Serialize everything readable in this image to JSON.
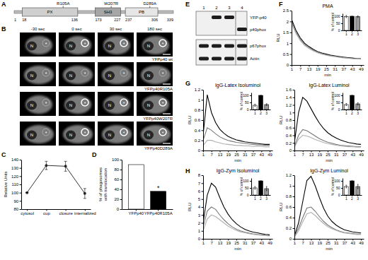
{
  "panel_labels": [
    "A",
    "B",
    "C",
    "D",
    "E",
    "F",
    "G",
    "H"
  ],
  "diagram": {
    "start": 1,
    "end": 339,
    "domains": [
      {
        "label": "PX",
        "start": 18,
        "end": 136
      },
      {
        "label": "SH3",
        "start": 173,
        "end": 227
      },
      {
        "label": "PB",
        "start": 237,
        "end": 306
      }
    ],
    "mutations": [
      {
        "label": "R105A",
        "position": 105
      },
      {
        "label": "W207R",
        "position": 207
      },
      {
        "label": "D289A",
        "position": 289
      }
    ]
  },
  "images": {
    "columns": [
      "-30 sec",
      "0 sec",
      "30 sec",
      "180 sec"
    ],
    "rows": [
      "YFPp40 wt",
      "YFPp40R105A",
      "YFPp40W207R",
      "YFPp40D289A"
    ],
    "markers": {
      "nucleus": "N",
      "phagosome": "*"
    }
  },
  "blot": {
    "lanes": [
      "1",
      "2",
      "3",
      "4"
    ],
    "blots": [
      {
        "bands": [
          {
            "label": "YFP-p40",
            "lanes": [
              false,
              true,
              true,
              false
            ]
          },
          {
            "label": "p40phox",
            "lanes": [
              false,
              false,
              false,
              true
            ]
          }
        ]
      },
      {
        "bands": [
          {
            "label": "p67phox",
            "lanes": [
              true,
              true,
              true,
              true
            ]
          },
          {
            "label": "Actin",
            "lanes": [
              true,
              true,
              true,
              true
            ]
          }
        ]
      }
    ]
  },
  "chart_data": [
    {
      "type": "line",
      "ylabel": "Relative Units",
      "categories": [
        "cytosol",
        "cup",
        "closure",
        "internalized"
      ],
      "values": [
        100,
        133,
        132,
        99
      ],
      "errors": [
        0,
        5,
        6,
        6
      ],
      "color": "#333333",
      "marker": "circle",
      "ylim": [
        80,
        140
      ],
      "yticks": [
        80,
        90,
        100,
        110,
        120,
        130,
        140
      ]
    },
    {
      "type": "bar",
      "ylabel": "% of phagosomes with translocation",
      "categories": [
        "YFPp40",
        "YFPp40R105A"
      ],
      "values": [
        90,
        36
      ],
      "colors": [
        "#ffffff",
        "#000000"
      ],
      "annotations": [
        null,
        "*"
      ],
      "ylim": [
        0,
        100
      ],
      "yticks": [
        0,
        20,
        40,
        60,
        80,
        100
      ]
    },
    {
      "type": "line",
      "title": "PMA",
      "xlabel": "min",
      "ylabel": "RLU",
      "x": [
        1,
        4,
        7,
        10,
        13,
        16,
        19,
        22,
        25,
        28,
        31,
        34,
        37,
        40,
        43,
        46,
        49
      ],
      "series": [
        {
          "color": "#000000",
          "values": [
            2.1,
            1.6,
            1.25,
            1.0,
            0.85,
            0.72,
            0.62,
            0.55,
            0.5,
            0.45,
            0.42,
            0.39,
            0.36,
            0.34,
            0.32,
            0.3,
            0.29
          ]
        },
        {
          "color": "#777777",
          "values": [
            2.0,
            1.52,
            1.18,
            0.95,
            0.8,
            0.68,
            0.59,
            0.52,
            0.47,
            0.43,
            0.4,
            0.37,
            0.34,
            0.32,
            0.3,
            0.29,
            0.28
          ]
        },
        {
          "color": "#b0b0b0",
          "values": [
            1.9,
            1.45,
            1.12,
            0.9,
            0.76,
            0.65,
            0.56,
            0.5,
            0.45,
            0.41,
            0.38,
            0.35,
            0.33,
            0.31,
            0.29,
            0.28,
            0.27
          ]
        }
      ],
      "xlim": [
        1,
        51
      ],
      "xticks": [
        1,
        7,
        13,
        19,
        25,
        31,
        37,
        43,
        49
      ],
      "ylim": [
        0,
        2.5
      ],
      "yticks": [
        0,
        0.5,
        1,
        1.5,
        2,
        2.5
      ]
    },
    {
      "type": "bar",
      "ylabel": "% of control",
      "categories": [
        "1",
        "2",
        "3"
      ],
      "values": [
        98,
        100,
        97
      ],
      "errors": [
        8,
        0,
        6
      ],
      "colors": [
        "#ffffff",
        "#000000",
        "#999999"
      ],
      "ylim": [
        0,
        120
      ],
      "yticks": [
        0,
        50,
        100
      ]
    },
    {
      "type": "line",
      "title": "IgG-Latex Isoluminol",
      "xlabel": "min",
      "ylabel": "RLU",
      "x": [
        1,
        4,
        7,
        10,
        13,
        16,
        19,
        22,
        25,
        28,
        31,
        34,
        37,
        40,
        43,
        46,
        49
      ],
      "series": [
        {
          "color": "#000000",
          "values": [
            0.3,
            1.1,
            0.75,
            0.55,
            0.42,
            0.34,
            0.28,
            0.24,
            0.21,
            0.19,
            0.17,
            0.16,
            0.15,
            0.14,
            0.13,
            0.12,
            0.12
          ]
        },
        {
          "color": "#777777",
          "values": [
            0.2,
            0.45,
            0.4,
            0.33,
            0.27,
            0.23,
            0.2,
            0.18,
            0.16,
            0.15,
            0.14,
            0.13,
            0.12,
            0.11,
            0.11,
            0.1,
            0.1
          ]
        },
        {
          "color": "#b0b0b0",
          "values": [
            0.1,
            0.2,
            0.2,
            0.17,
            0.15,
            0.13,
            0.12,
            0.11,
            0.1,
            0.1,
            0.09,
            0.09,
            0.08,
            0.08,
            0.08,
            0.07,
            0.07
          ]
        }
      ],
      "xlim": [
        1,
        51
      ],
      "xticks": [
        1,
        7,
        13,
        19,
        25,
        31,
        37,
        43,
        49
      ],
      "ylim": [
        0,
        1.2
      ],
      "yticks": [
        0,
        0.2,
        0.4,
        0.6,
        0.8,
        1,
        1.2
      ]
    },
    {
      "type": "bar",
      "ylabel": "% of control",
      "categories": [
        "1",
        "2",
        "3"
      ],
      "values": [
        30,
        100,
        35
      ],
      "errors": [
        8,
        0,
        6
      ],
      "colors": [
        "#ffffff",
        "#000000",
        "#999999"
      ],
      "ylim": [
        0,
        120
      ],
      "yticks": [
        0,
        50,
        100
      ]
    },
    {
      "type": "line",
      "title": "IgG-Latex Luminol",
      "xlabel": "min",
      "ylabel": "RLU",
      "x": [
        1,
        4,
        7,
        10,
        13,
        16,
        19,
        22,
        25,
        28,
        31,
        34,
        37,
        40,
        43,
        46,
        49
      ],
      "series": [
        {
          "color": "#000000",
          "values": [
            0.2,
            1.0,
            1.4,
            1.3,
            1.1,
            0.9,
            0.72,
            0.58,
            0.47,
            0.39,
            0.33,
            0.28,
            0.24,
            0.21,
            0.19,
            0.17,
            0.16
          ]
        },
        {
          "color": "#777777",
          "values": [
            0.1,
            0.4,
            0.55,
            0.52,
            0.45,
            0.38,
            0.31,
            0.26,
            0.22,
            0.19,
            0.16,
            0.14,
            0.13,
            0.12,
            0.11,
            0.1,
            0.1
          ]
        },
        {
          "color": "#b0b0b0",
          "values": [
            0.08,
            0.3,
            0.4,
            0.38,
            0.34,
            0.29,
            0.25,
            0.21,
            0.18,
            0.16,
            0.14,
            0.12,
            0.11,
            0.1,
            0.1,
            0.09,
            0.09
          ]
        }
      ],
      "xlim": [
        1,
        51
      ],
      "xticks": [
        1,
        7,
        13,
        19,
        25,
        31,
        37,
        43,
        49
      ],
      "ylim": [
        0,
        1.6
      ],
      "yticks": [
        0,
        0.2,
        0.4,
        0.6,
        0.8,
        1,
        1.2,
        1.4,
        1.6
      ]
    },
    {
      "type": "bar",
      "ylabel": "% of control",
      "categories": [
        "1",
        "2",
        "3"
      ],
      "values": [
        35,
        100,
        40
      ],
      "errors": [
        8,
        0,
        8
      ],
      "colors": [
        "#ffffff",
        "#000000",
        "#999999"
      ],
      "ylim": [
        0,
        120
      ],
      "yticks": [
        0,
        50,
        100
      ]
    },
    {
      "type": "line",
      "title": "IgG-Zym Isoluminol",
      "xlabel": "min",
      "ylabel": "RLU",
      "x": [
        1,
        4,
        7,
        10,
        13,
        16,
        19,
        22,
        25,
        28,
        31,
        34,
        37,
        40,
        43,
        46,
        49
      ],
      "series": [
        {
          "color": "#000000",
          "values": [
            2,
            5.5,
            7,
            6.5,
            5.2,
            4,
            3.1,
            2.4,
            1.9,
            1.5,
            1.2,
            1,
            0.85,
            0.75,
            0.65,
            0.55,
            0.5
          ]
        },
        {
          "color": "#777777",
          "values": [
            1.5,
            3.5,
            4,
            3.7,
            3,
            2.4,
            1.9,
            1.5,
            1.2,
            1,
            0.85,
            0.72,
            0.62,
            0.55,
            0.5,
            0.45,
            0.4
          ]
        },
        {
          "color": "#b0b0b0",
          "values": [
            1,
            2.5,
            3,
            2.8,
            2.4,
            2,
            1.6,
            1.3,
            1.05,
            0.88,
            0.75,
            0.64,
            0.56,
            0.5,
            0.45,
            0.4,
            0.36
          ]
        }
      ],
      "xlim": [
        1,
        51
      ],
      "xticks": [
        1,
        7,
        13,
        19,
        25,
        31,
        37,
        43,
        49
      ],
      "ylim": [
        0,
        8
      ],
      "yticks": [
        0,
        1,
        2,
        3,
        4,
        5,
        6,
        7,
        8
      ]
    },
    {
      "type": "bar",
      "ylabel": "% of control",
      "categories": [
        "1",
        "2",
        "3"
      ],
      "values": [
        50,
        100,
        45
      ],
      "errors": [
        10,
        0,
        15
      ],
      "colors": [
        "#ffffff",
        "#000000",
        "#999999"
      ],
      "ylim": [
        0,
        120
      ],
      "yticks": [
        0,
        50,
        100
      ]
    },
    {
      "type": "line",
      "title": "IgG-Zym Luminol",
      "xlabel": "min",
      "ylabel": "RLU",
      "x": [
        1,
        4,
        7,
        10,
        13,
        16,
        19,
        22,
        25,
        28,
        31,
        34,
        37,
        40,
        43,
        46,
        49
      ],
      "series": [
        {
          "color": "#000000",
          "values": [
            0.05,
            0.3,
            0.7,
            1.1,
            1.18,
            1.0,
            0.78,
            0.58,
            0.43,
            0.33,
            0.26,
            0.21,
            0.17,
            0.15,
            0.13,
            0.12,
            0.11
          ]
        },
        {
          "color": "#777777",
          "values": [
            0.04,
            0.2,
            0.4,
            0.58,
            0.6,
            0.52,
            0.42,
            0.33,
            0.26,
            0.21,
            0.17,
            0.14,
            0.12,
            0.11,
            0.1,
            0.09,
            0.09
          ]
        },
        {
          "color": "#b0b0b0",
          "values": [
            0.03,
            0.15,
            0.32,
            0.47,
            0.5,
            0.44,
            0.36,
            0.29,
            0.23,
            0.19,
            0.16,
            0.13,
            0.11,
            0.1,
            0.09,
            0.08,
            0.08
          ]
        }
      ],
      "xlim": [
        1,
        51
      ],
      "xticks": [
        1,
        7,
        13,
        19,
        25,
        31,
        37,
        43,
        49
      ],
      "ylim": [
        0,
        1.2
      ],
      "yticks": [
        0,
        0.2,
        0.4,
        0.6,
        0.8,
        1,
        1.2
      ]
    },
    {
      "type": "bar",
      "ylabel": "% of control",
      "categories": [
        "1",
        "2",
        "3"
      ],
      "values": [
        60,
        100,
        60
      ],
      "errors": [
        10,
        0,
        15
      ],
      "colors": [
        "#ffffff",
        "#000000",
        "#999999"
      ],
      "ylim": [
        0,
        120
      ],
      "yticks": [
        0,
        50,
        100
      ]
    }
  ]
}
